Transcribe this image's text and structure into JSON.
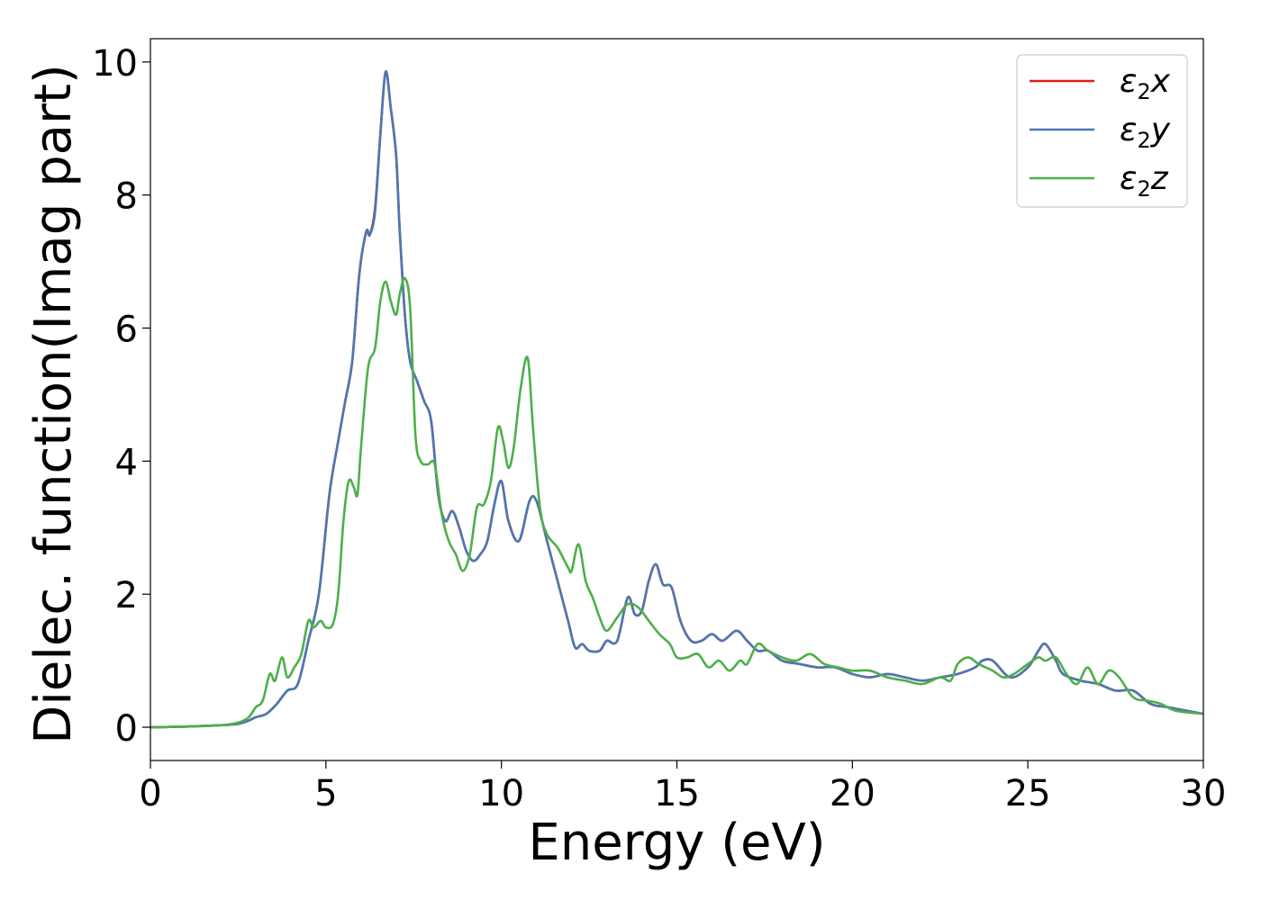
{
  "chart_data": {
    "type": "line",
    "xlabel": "Energy (eV)",
    "ylabel": "Dielec. function(Imag part)",
    "xlim": [
      0,
      30
    ],
    "ylim": [
      -0.5,
      10.35
    ],
    "x_ticks": [
      0,
      5,
      10,
      15,
      20,
      25,
      30
    ],
    "y_ticks": [
      0,
      2,
      4,
      6,
      8,
      10
    ],
    "grid": false,
    "legend_position": "top-right",
    "series": [
      {
        "name": "ε2x",
        "legend_main": "ε",
        "legend_sub": "2",
        "legend_suffix": "x",
        "color": "#e41a1c",
        "x": [
          0,
          1,
          2,
          2.5,
          2.8,
          3.0,
          3.3,
          3.6,
          3.9,
          4.2,
          4.5,
          4.8,
          5.1,
          5.35,
          5.55,
          5.75,
          5.95,
          6.15,
          6.25,
          6.4,
          6.55,
          6.7,
          6.85,
          7.0,
          7.1,
          7.25,
          7.4,
          7.6,
          7.8,
          8.0,
          8.2,
          8.4,
          8.6,
          8.8,
          9.0,
          9.2,
          9.4,
          9.6,
          9.8,
          10.0,
          10.2,
          10.5,
          10.8,
          11.0,
          11.3,
          11.6,
          11.9,
          12.1,
          12.3,
          12.5,
          12.8,
          13.0,
          13.3,
          13.6,
          13.8,
          14.0,
          14.2,
          14.4,
          14.6,
          14.85,
          15.1,
          15.4,
          15.7,
          16.0,
          16.3,
          16.7,
          17.0,
          17.3,
          17.6,
          18.0,
          18.5,
          19.0,
          19.5,
          20.0,
          20.5,
          21.0,
          21.5,
          22.0,
          22.5,
          23.0,
          23.5,
          23.7,
          24.0,
          24.5,
          25.0,
          25.3,
          25.5,
          25.8,
          26.0,
          26.5,
          27.0,
          27.5,
          28.0,
          28.5,
          29.0,
          30.0
        ],
        "values": [
          0,
          0.01,
          0.03,
          0.05,
          0.1,
          0.15,
          0.2,
          0.35,
          0.55,
          0.65,
          1.3,
          2.0,
          3.5,
          4.3,
          4.9,
          5.5,
          6.8,
          7.45,
          7.4,
          7.8,
          8.9,
          9.85,
          9.3,
          8.6,
          7.5,
          6.2,
          5.5,
          5.2,
          4.9,
          4.6,
          3.5,
          3.1,
          3.25,
          3.0,
          2.65,
          2.5,
          2.6,
          2.8,
          3.35,
          3.7,
          3.1,
          2.8,
          3.4,
          3.4,
          2.8,
          2.2,
          1.6,
          1.2,
          1.25,
          1.15,
          1.15,
          1.3,
          1.3,
          1.95,
          1.7,
          1.75,
          2.2,
          2.45,
          2.15,
          2.1,
          1.6,
          1.3,
          1.3,
          1.4,
          1.3,
          1.45,
          1.3,
          1.15,
          1.15,
          1.0,
          0.95,
          0.9,
          0.9,
          0.8,
          0.75,
          0.8,
          0.75,
          0.7,
          0.75,
          0.8,
          0.9,
          1.0,
          1.0,
          0.75,
          0.9,
          1.15,
          1.25,
          1.0,
          0.8,
          0.7,
          0.65,
          0.55,
          0.55,
          0.35,
          0.3,
          0.2
        ]
      },
      {
        "name": "ε2y",
        "legend_main": "ε",
        "legend_sub": "2",
        "legend_suffix": "y",
        "color": "#4a78b2",
        "x": [
          0,
          1,
          2,
          2.5,
          2.8,
          3.0,
          3.3,
          3.6,
          3.9,
          4.2,
          4.5,
          4.8,
          5.1,
          5.35,
          5.55,
          5.75,
          5.95,
          6.15,
          6.25,
          6.4,
          6.55,
          6.7,
          6.85,
          7.0,
          7.1,
          7.25,
          7.4,
          7.6,
          7.8,
          8.0,
          8.2,
          8.4,
          8.6,
          8.8,
          9.0,
          9.2,
          9.4,
          9.6,
          9.8,
          10.0,
          10.2,
          10.5,
          10.8,
          11.0,
          11.3,
          11.6,
          11.9,
          12.1,
          12.3,
          12.5,
          12.8,
          13.0,
          13.3,
          13.6,
          13.8,
          14.0,
          14.2,
          14.4,
          14.6,
          14.85,
          15.1,
          15.4,
          15.7,
          16.0,
          16.3,
          16.7,
          17.0,
          17.3,
          17.6,
          18.0,
          18.5,
          19.0,
          19.5,
          20.0,
          20.5,
          21.0,
          21.5,
          22.0,
          22.5,
          23.0,
          23.5,
          23.7,
          24.0,
          24.5,
          25.0,
          25.3,
          25.5,
          25.8,
          26.0,
          26.5,
          27.0,
          27.5,
          28.0,
          28.5,
          29.0,
          30.0
        ],
        "values": [
          0,
          0.01,
          0.03,
          0.05,
          0.1,
          0.15,
          0.2,
          0.35,
          0.55,
          0.65,
          1.3,
          2.0,
          3.5,
          4.3,
          4.9,
          5.5,
          6.8,
          7.45,
          7.4,
          7.75,
          8.9,
          9.85,
          9.3,
          8.6,
          7.5,
          6.2,
          5.5,
          5.2,
          4.9,
          4.6,
          3.5,
          3.1,
          3.25,
          3.0,
          2.65,
          2.5,
          2.6,
          2.8,
          3.35,
          3.7,
          3.1,
          2.8,
          3.4,
          3.4,
          2.8,
          2.2,
          1.6,
          1.2,
          1.25,
          1.15,
          1.15,
          1.3,
          1.3,
          1.95,
          1.7,
          1.75,
          2.2,
          2.45,
          2.15,
          2.1,
          1.6,
          1.3,
          1.3,
          1.4,
          1.3,
          1.45,
          1.3,
          1.15,
          1.15,
          1.0,
          0.95,
          0.9,
          0.9,
          0.8,
          0.75,
          0.8,
          0.75,
          0.7,
          0.75,
          0.8,
          0.9,
          1.0,
          1.0,
          0.75,
          0.9,
          1.15,
          1.25,
          1.0,
          0.8,
          0.7,
          0.65,
          0.55,
          0.55,
          0.35,
          0.3,
          0.2
        ]
      },
      {
        "name": "ε2z",
        "legend_main": "ε",
        "legend_sub": "2",
        "legend_suffix": "z",
        "color": "#4daf4a",
        "x": [
          0,
          1,
          2,
          2.5,
          2.8,
          3.0,
          3.2,
          3.4,
          3.55,
          3.75,
          3.9,
          4.1,
          4.3,
          4.5,
          4.65,
          4.85,
          5.0,
          5.2,
          5.35,
          5.5,
          5.65,
          5.8,
          5.9,
          6.0,
          6.2,
          6.4,
          6.55,
          6.7,
          6.85,
          7.0,
          7.1,
          7.25,
          7.4,
          7.55,
          7.7,
          7.9,
          8.1,
          8.3,
          8.5,
          8.7,
          8.9,
          9.1,
          9.3,
          9.5,
          9.7,
          9.9,
          10.05,
          10.2,
          10.35,
          10.55,
          10.75,
          10.9,
          11.1,
          11.3,
          11.6,
          11.9,
          12.0,
          12.2,
          12.4,
          12.6,
          12.8,
          13.0,
          13.3,
          13.6,
          13.9,
          14.2,
          14.5,
          14.8,
          15.0,
          15.3,
          15.6,
          15.9,
          16.2,
          16.5,
          16.8,
          17.0,
          17.3,
          17.6,
          18.0,
          18.4,
          18.8,
          19.2,
          19.6,
          20.0,
          20.5,
          21.0,
          21.5,
          22.0,
          22.5,
          22.8,
          23.0,
          23.3,
          23.6,
          24.0,
          24.3,
          24.6,
          25.0,
          25.3,
          25.5,
          25.8,
          26.1,
          26.4,
          26.7,
          27.0,
          27.3,
          27.6,
          28.0,
          28.4,
          28.8,
          29.2,
          30.0
        ],
        "values": [
          0,
          0.01,
          0.03,
          0.07,
          0.15,
          0.3,
          0.4,
          0.8,
          0.7,
          1.05,
          0.75,
          0.9,
          1.1,
          1.6,
          1.5,
          1.6,
          1.5,
          1.55,
          2.0,
          3.1,
          3.7,
          3.6,
          3.5,
          4.2,
          5.4,
          5.7,
          6.4,
          6.7,
          6.4,
          6.2,
          6.5,
          6.75,
          6.3,
          4.4,
          4.0,
          3.95,
          3.95,
          3.2,
          2.8,
          2.6,
          2.35,
          2.6,
          3.3,
          3.35,
          3.7,
          4.5,
          4.3,
          3.9,
          4.2,
          5.1,
          5.55,
          4.5,
          3.3,
          2.9,
          2.7,
          2.4,
          2.35,
          2.75,
          2.2,
          1.95,
          1.65,
          1.45,
          1.65,
          1.85,
          1.8,
          1.6,
          1.4,
          1.25,
          1.05,
          1.05,
          1.1,
          0.9,
          1.0,
          0.85,
          1.0,
          0.95,
          1.25,
          1.15,
          1.05,
          1.0,
          1.1,
          0.95,
          0.9,
          0.85,
          0.85,
          0.75,
          0.7,
          0.65,
          0.75,
          0.7,
          0.95,
          1.05,
          0.95,
          0.85,
          0.75,
          0.8,
          0.95,
          1.05,
          1.0,
          1.05,
          0.8,
          0.65,
          0.9,
          0.65,
          0.85,
          0.75,
          0.45,
          0.4,
          0.35,
          0.25,
          0.2
        ]
      }
    ]
  }
}
